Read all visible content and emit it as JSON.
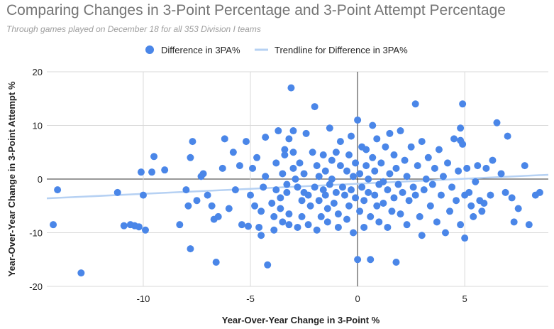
{
  "colors": {
    "points": "#4a86e8",
    "trendline": "#b6d1f3",
    "grid": "#d9d9d9",
    "zero_line": "#333333",
    "title": "#757575",
    "subtitle": "#9e9e9e"
  },
  "chart_data": {
    "type": "scatter",
    "title": "Comparing Changes in 3-Point Percentage and 3-Point Attempt Percentage",
    "subtitle": "Through games played on December 18 for all 353 Division I teams",
    "xlabel": "Year-Over-Year Change in 3-Point %",
    "ylabel": "Year-Over-Year Change in 3-Point Attempt %",
    "xlim": [
      -14.5,
      8.9
    ],
    "ylim": [
      -20,
      20
    ],
    "x_ticks": [
      -10,
      -5,
      0,
      5
    ],
    "y_ticks": [
      -20,
      -10,
      0,
      10,
      20
    ],
    "grid": true,
    "legend_position": "top",
    "series": [
      {
        "name": "Difference in 3PA%",
        "points": [
          [
            -14.2,
            -8.5
          ],
          [
            -14.0,
            -2.0
          ],
          [
            -12.9,
            -17.5
          ],
          [
            -11.2,
            -2.5
          ],
          [
            -10.9,
            -8.7
          ],
          [
            -10.6,
            -8.5
          ],
          [
            -10.4,
            -8.7
          ],
          [
            -10.2,
            -8.9
          ],
          [
            -10.0,
            -3.0
          ],
          [
            -9.9,
            -9.5
          ],
          [
            -10.1,
            1.3
          ],
          [
            -9.6,
            1.3
          ],
          [
            -9.5,
            4.2
          ],
          [
            -9.0,
            1.7
          ],
          [
            -8.3,
            -8.5
          ],
          [
            -8.0,
            -2.0
          ],
          [
            -7.9,
            -5.0
          ],
          [
            -7.8,
            -13.0
          ],
          [
            -7.8,
            4.0
          ],
          [
            -7.7,
            7.0
          ],
          [
            -7.5,
            -4.0
          ],
          [
            -7.3,
            0.5
          ],
          [
            -7.2,
            1.0
          ],
          [
            -7.0,
            -3.0
          ],
          [
            -6.8,
            -5.0
          ],
          [
            -6.7,
            -7.5
          ],
          [
            -6.6,
            -15.5
          ],
          [
            -6.5,
            -7.0
          ],
          [
            -6.3,
            2.0
          ],
          [
            -6.2,
            7.5
          ],
          [
            -6.0,
            -5.5
          ],
          [
            -5.8,
            5.0
          ],
          [
            -5.7,
            -2.0
          ],
          [
            -5.5,
            2.5
          ],
          [
            -5.4,
            -8.5
          ],
          [
            -5.2,
            7.0
          ],
          [
            -5.1,
            -8.8
          ],
          [
            -5.0,
            -3.0
          ],
          [
            -4.9,
            2.0
          ],
          [
            -4.8,
            -5.0
          ],
          [
            -4.7,
            4.0
          ],
          [
            -4.6,
            -9.0
          ],
          [
            -4.5,
            -10.5
          ],
          [
            -4.5,
            -6.0
          ],
          [
            -4.4,
            -1.5
          ],
          [
            -4.3,
            0.5
          ],
          [
            -4.3,
            7.8
          ],
          [
            -4.2,
            -16.0
          ],
          [
            -4.0,
            -4.5
          ],
          [
            -3.9,
            -7.0
          ],
          [
            -3.9,
            -9.5
          ],
          [
            -3.8,
            -2.0
          ],
          [
            -3.8,
            3.0
          ],
          [
            -3.7,
            9.0
          ],
          [
            -3.6,
            -3.5
          ],
          [
            -3.6,
            -5.5
          ],
          [
            -3.5,
            -8.0
          ],
          [
            -3.5,
            1.0
          ],
          [
            -3.4,
            4.5
          ],
          [
            -3.4,
            5.5
          ],
          [
            -3.3,
            -2.5
          ],
          [
            -3.3,
            -1.0
          ],
          [
            -3.2,
            -6.5
          ],
          [
            -3.2,
            -8.5
          ],
          [
            -3.2,
            7.5
          ],
          [
            -3.1,
            17.0
          ],
          [
            -3.0,
            2.0
          ],
          [
            -3.0,
            5.0
          ],
          [
            -3.0,
            9.0
          ],
          [
            -2.9,
            0.0
          ],
          [
            -2.8,
            -9.0
          ],
          [
            -2.8,
            -1.5
          ],
          [
            -2.7,
            3.0
          ],
          [
            -2.6,
            -4.0
          ],
          [
            -2.6,
            -7.0
          ],
          [
            -2.5,
            -2.5
          ],
          [
            -2.5,
            1.0
          ],
          [
            -2.4,
            8.5
          ],
          [
            -2.3,
            -3.0
          ],
          [
            -2.3,
            -8.5
          ],
          [
            -2.2,
            -5.0
          ],
          [
            -2.1,
            5.0
          ],
          [
            -2.0,
            13.5
          ],
          [
            -2.0,
            -1.5
          ],
          [
            -1.9,
            -9.5
          ],
          [
            -1.9,
            2.5
          ],
          [
            -1.8,
            -4.0
          ],
          [
            -1.8,
            0.5
          ],
          [
            -1.7,
            -7.0
          ],
          [
            -1.6,
            -2.0
          ],
          [
            -1.6,
            4.5
          ],
          [
            -1.5,
            -3.0
          ],
          [
            -1.5,
            1.5
          ],
          [
            -1.4,
            -5.5
          ],
          [
            -1.4,
            -8.0
          ],
          [
            -1.3,
            -1.0
          ],
          [
            -1.3,
            9.5
          ],
          [
            -1.2,
            0.0
          ],
          [
            -1.2,
            3.5
          ],
          [
            -1.1,
            -4.5
          ],
          [
            -1.0,
            -2.5
          ],
          [
            -1.0,
            5.0
          ],
          [
            -0.9,
            -6.5
          ],
          [
            -0.9,
            -9.0
          ],
          [
            -0.8,
            2.5
          ],
          [
            -0.8,
            7.0
          ],
          [
            -0.7,
            -1.5
          ],
          [
            -0.6,
            -3.0
          ],
          [
            -0.5,
            1.5
          ],
          [
            -0.5,
            -7.5
          ],
          [
            -0.4,
            4.5
          ],
          [
            -0.4,
            -5.0
          ],
          [
            -0.3,
            -2.0
          ],
          [
            -0.3,
            8.0
          ],
          [
            -0.2,
            0.5
          ],
          [
            -0.2,
            -10.0
          ],
          [
            -0.1,
            -3.5
          ],
          [
            -0.1,
            3.0
          ],
          [
            0.0,
            -15.0
          ],
          [
            0.0,
            11.0
          ],
          [
            0.1,
            -6.0
          ],
          [
            0.1,
            1.0
          ],
          [
            0.2,
            -1.5
          ],
          [
            0.2,
            6.0
          ],
          [
            0.3,
            -4.0
          ],
          [
            0.3,
            -9.0
          ],
          [
            0.4,
            2.5
          ],
          [
            0.4,
            5.5
          ],
          [
            0.5,
            -2.5
          ],
          [
            0.5,
            0.0
          ],
          [
            0.6,
            -7.0
          ],
          [
            0.6,
            -15.0
          ],
          [
            0.7,
            4.0
          ],
          [
            0.7,
            10.0
          ],
          [
            0.8,
            -3.0
          ],
          [
            0.8,
            1.5
          ],
          [
            0.9,
            -5.0
          ],
          [
            0.9,
            7.5
          ],
          [
            1.0,
            -1.0
          ],
          [
            1.0,
            -8.0
          ],
          [
            1.1,
            3.0
          ],
          [
            1.2,
            -4.5
          ],
          [
            1.2,
            -0.5
          ],
          [
            1.3,
            6.0
          ],
          [
            1.4,
            -2.0
          ],
          [
            1.4,
            -9.0
          ],
          [
            1.5,
            1.0
          ],
          [
            1.5,
            8.5
          ],
          [
            1.6,
            -6.0
          ],
          [
            1.7,
            -3.5
          ],
          [
            1.7,
            4.5
          ],
          [
            1.8,
            -15.5
          ],
          [
            1.8,
            2.0
          ],
          [
            1.9,
            -1.0
          ],
          [
            2.0,
            -6.5
          ],
          [
            2.0,
            9.0
          ],
          [
            2.1,
            -2.5
          ],
          [
            2.2,
            3.5
          ],
          [
            2.3,
            -8.5
          ],
          [
            2.3,
            0.5
          ],
          [
            2.4,
            -4.0
          ],
          [
            2.5,
            6.0
          ],
          [
            2.6,
            -1.5
          ],
          [
            2.7,
            14.0
          ],
          [
            2.7,
            -3.0
          ],
          [
            2.8,
            2.5
          ],
          [
            2.9,
            -7.0
          ],
          [
            3.0,
            -10.5
          ],
          [
            3.0,
            7.0
          ],
          [
            3.1,
            -2.0
          ],
          [
            3.2,
            0.0
          ],
          [
            3.3,
            4.0
          ],
          [
            3.4,
            -5.0
          ],
          [
            3.5,
            -1.0
          ],
          [
            3.6,
            2.0
          ],
          [
            3.7,
            -8.0
          ],
          [
            3.8,
            5.5
          ],
          [
            3.9,
            -3.0
          ],
          [
            4.0,
            0.5
          ],
          [
            4.1,
            -10.0
          ],
          [
            4.2,
            3.0
          ],
          [
            4.3,
            -6.0
          ],
          [
            4.4,
            -1.5
          ],
          [
            4.5,
            7.5
          ],
          [
            4.6,
            -4.0
          ],
          [
            4.7,
            1.5
          ],
          [
            4.8,
            -8.5
          ],
          [
            4.8,
            9.5
          ],
          [
            4.8,
            7.2
          ],
          [
            4.9,
            6.5
          ],
          [
            4.9,
            14.0
          ],
          [
            5.0,
            -11.0
          ],
          [
            5.0,
            -3.0
          ],
          [
            5.1,
            2.0
          ],
          [
            5.2,
            -2.5
          ],
          [
            5.3,
            -5.0
          ],
          [
            5.4,
            -7.0
          ],
          [
            5.5,
            -0.5
          ],
          [
            5.6,
            2.5
          ],
          [
            5.7,
            -4.0
          ],
          [
            5.8,
            -6.0
          ],
          [
            5.9,
            -4.5
          ],
          [
            6.0,
            2.0
          ],
          [
            6.2,
            -3.0
          ],
          [
            6.3,
            3.5
          ],
          [
            6.5,
            10.5
          ],
          [
            6.7,
            1.0
          ],
          [
            6.9,
            -2.5
          ],
          [
            7.0,
            8.0
          ],
          [
            7.2,
            -3.5
          ],
          [
            7.3,
            -8.0
          ],
          [
            7.5,
            -5.5
          ],
          [
            7.8,
            2.5
          ],
          [
            8.0,
            -8.5
          ],
          [
            8.3,
            -3.0
          ],
          [
            8.5,
            -2.5
          ]
        ]
      },
      {
        "name": "Trendline for Difference in 3PA%",
        "line": [
          [
            -14.5,
            -3.6
          ],
          [
            8.9,
            0.8
          ]
        ]
      }
    ]
  }
}
